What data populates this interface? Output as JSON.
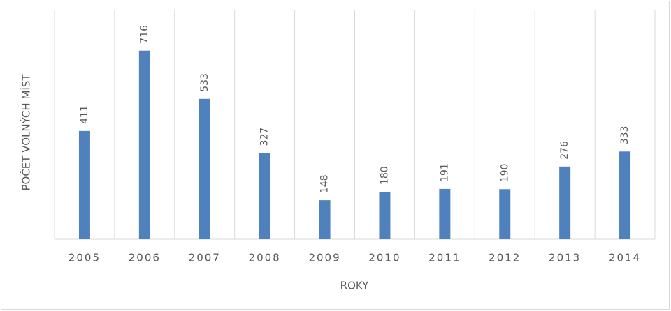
{
  "chart_data": {
    "type": "bar",
    "x_label": "ROKY",
    "y_label": "POČET VOLNÝCH MÍST",
    "categories": [
      "2005",
      "2006",
      "2007",
      "2008",
      "2009",
      "2010",
      "2011",
      "2012",
      "2013",
      "2014"
    ],
    "values": [
      411,
      716,
      533,
      327,
      148,
      180,
      191,
      190,
      276,
      333
    ],
    "color": "#4f81bd",
    "ylim": [
      0,
      800
    ],
    "grid": true
  }
}
